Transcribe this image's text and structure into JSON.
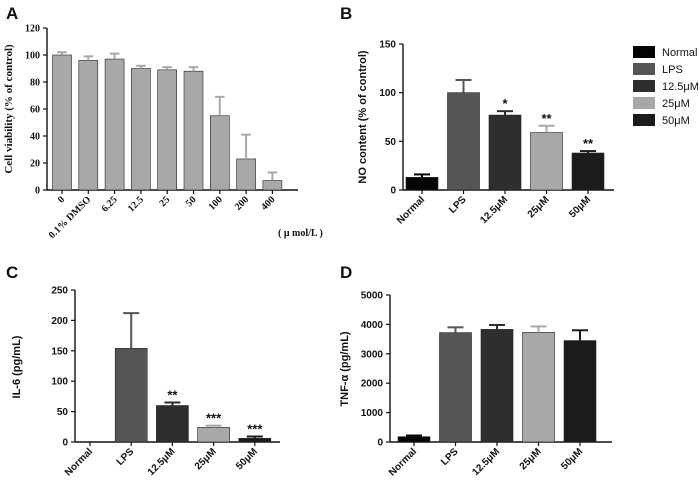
{
  "chart_data": [
    {
      "panel": "A",
      "type": "bar",
      "ylabel": "Cell viability (% of control)",
      "unit_label": "( μ mol/L )",
      "categories": [
        "0",
        "0.1% DMSO",
        "6.25",
        "12.5",
        "25",
        "50",
        "100",
        "200",
        "400"
      ],
      "values": [
        100,
        96,
        97,
        90,
        89,
        88,
        55,
        23,
        7
      ],
      "errors": [
        2,
        3,
        4,
        2,
        2,
        3,
        14,
        18,
        6
      ],
      "ylim": [
        0,
        120
      ],
      "yticks": [
        0,
        20,
        40,
        60,
        80,
        100,
        120
      ],
      "bar_color": "#a8a8a8"
    },
    {
      "panel": "B",
      "type": "bar",
      "ylabel": "NO content (% of control)",
      "categories": [
        "Normal",
        "LPS",
        "12.5μM",
        "25μM",
        "50μM"
      ],
      "values": [
        13,
        100,
        77,
        59,
        38
      ],
      "errors": [
        3,
        13,
        4,
        7,
        2
      ],
      "annotations": [
        "",
        "",
        "*",
        "**",
        "**"
      ],
      "ylim": [
        0,
        150
      ],
      "yticks": [
        0,
        50,
        100,
        150
      ],
      "colors": [
        "#050505",
        "#555555",
        "#2e2e2e",
        "#a8a8a8",
        "#1c1c1c"
      ]
    },
    {
      "panel": "C",
      "type": "bar",
      "ylabel": "IL-6 (pg/mL)",
      "categories": [
        "Normal",
        "LPS",
        "12.5μM",
        "25μM",
        "50μM"
      ],
      "values": [
        0,
        154,
        60,
        24,
        6
      ],
      "errors": [
        0,
        58,
        5,
        3,
        3
      ],
      "annotations": [
        "",
        "",
        "**",
        "***",
        "***"
      ],
      "ylim": [
        0,
        250
      ],
      "yticks": [
        0,
        50,
        100,
        150,
        200,
        250
      ],
      "colors": [
        "#050505",
        "#555555",
        "#2e2e2e",
        "#a8a8a8",
        "#1c1c1c"
      ]
    },
    {
      "panel": "D",
      "type": "bar",
      "ylabel": "TNF-α (pg/mL)",
      "categories": [
        "Normal",
        "LPS",
        "12.5μM",
        "25μM",
        "50μM"
      ],
      "values": [
        180,
        3720,
        3830,
        3730,
        3450
      ],
      "errors": [
        40,
        180,
        150,
        200,
        350
      ],
      "annotations": [
        "",
        "",
        "",
        "",
        ""
      ],
      "ylim": [
        0,
        5000
      ],
      "yticks": [
        0,
        1000,
        2000,
        3000,
        4000,
        5000
      ],
      "colors": [
        "#050505",
        "#555555",
        "#2e2e2e",
        "#a8a8a8",
        "#1c1c1c"
      ]
    }
  ],
  "legend": {
    "entries": [
      "Normal",
      "LPS",
      "12.5μM",
      "25μM",
      "50μM"
    ],
    "colors": [
      "#050505",
      "#555555",
      "#2e2e2e",
      "#a8a8a8",
      "#1c1c1c"
    ]
  }
}
